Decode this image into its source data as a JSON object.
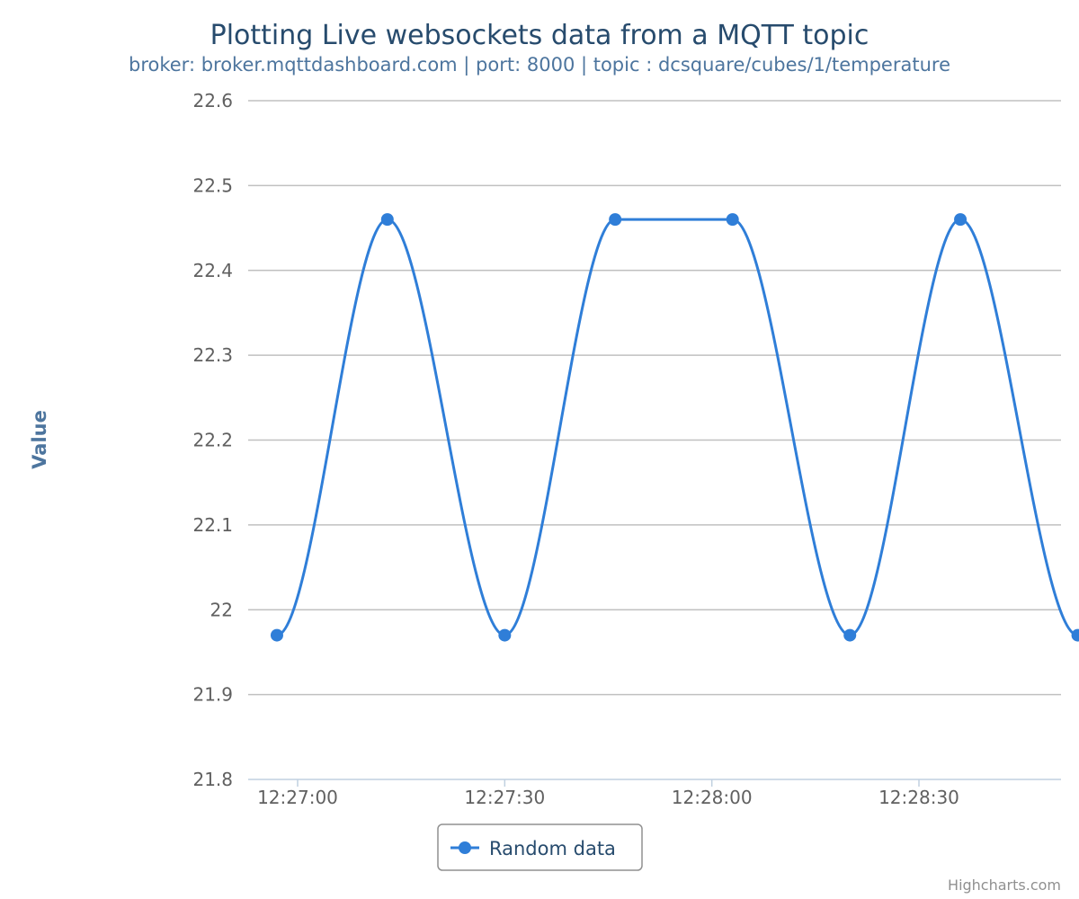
{
  "chart_data": {
    "type": "line",
    "title": "Plotting Live websockets data from a MQTT topic",
    "subtitle": "broker: broker.mqttdashboard.com | port: 8000 | topic : dcsquare/cubes/1/temperature",
    "ylabel": "Value",
    "ylim": [
      21.8,
      22.6
    ],
    "yticks": [
      "21.8",
      "21.9",
      "22",
      "22.1",
      "22.2",
      "22.3",
      "22.4",
      "22.5",
      "22.6"
    ],
    "xticks": [
      "12:27:00",
      "12:27:30",
      "12:28:00",
      "12:28:30"
    ],
    "grid": true,
    "legend_position": "bottom",
    "smooth": true,
    "series": [
      {
        "name": "Random data",
        "color": "#2f7ed8",
        "points": [
          {
            "x": "12:26:57",
            "y": 21.97
          },
          {
            "x": "12:27:13",
            "y": 22.46
          },
          {
            "x": "12:27:30",
            "y": 21.97
          },
          {
            "x": "12:27:46",
            "y": 22.46
          },
          {
            "x": "12:28:03",
            "y": 22.46
          },
          {
            "x": "12:28:20",
            "y": 21.97
          },
          {
            "x": "12:28:36",
            "y": 22.46
          },
          {
            "x": "12:28:53",
            "y": 21.97
          }
        ]
      }
    ]
  },
  "credits": "Highcharts.com"
}
